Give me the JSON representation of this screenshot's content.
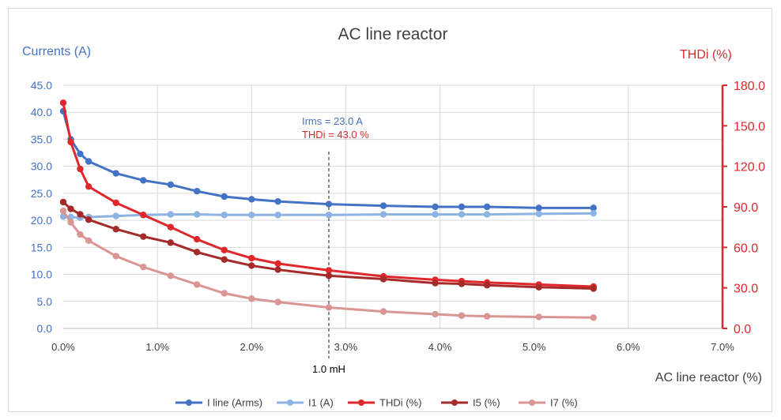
{
  "chart_data": {
    "type": "line",
    "title": "AC line reactor",
    "xlabel": "AC line reactor (%)",
    "ylabel_left": "Currents (A)",
    "ylabel_right": "THDi (%)",
    "xlim": [
      0,
      7
    ],
    "ylim_left": [
      0,
      45
    ],
    "ylim_right": [
      0,
      180
    ],
    "x_ticks": [
      "0.0%",
      "1.0%",
      "2.0%",
      "3.0%",
      "4.0%",
      "5.0%",
      "6.0%",
      "7.0%"
    ],
    "y_ticks_left": [
      "0.0",
      "5.0",
      "10.0",
      "15.0",
      "20.0",
      "25.0",
      "30.0",
      "35.0",
      "40.0",
      "45.0"
    ],
    "y_ticks_right": [
      "0.0",
      "30.0",
      "60.0",
      "90.0",
      "120.0",
      "150.0",
      "180.0"
    ],
    "grid": true,
    "legend_position": "bottom",
    "annotation": {
      "x": 2.82,
      "lines": [
        "Irms = 23.0 A",
        "THDi = 43.0 %"
      ],
      "marker_label": "1.0 mH"
    },
    "series": [
      {
        "name": "I line (Arms)",
        "axis": "left",
        "color": "#4472c4",
        "x": [
          0,
          0.08,
          0.18,
          0.27,
          0.56,
          0.85,
          1.14,
          1.42,
          1.71,
          2.0,
          2.28,
          2.82,
          3.4,
          3.95,
          4.23,
          4.5,
          5.05,
          5.63
        ],
        "y": [
          40.2,
          35.0,
          32.3,
          30.9,
          28.7,
          27.4,
          26.6,
          25.4,
          24.4,
          23.9,
          23.5,
          23.0,
          22.7,
          22.5,
          22.5,
          22.5,
          22.3,
          22.3
        ]
      },
      {
        "name": "I1 (A)",
        "axis": "left",
        "color": "#8db3e2",
        "x": [
          0,
          0.08,
          0.18,
          0.27,
          0.56,
          0.85,
          1.14,
          1.42,
          1.71,
          2.0,
          2.28,
          2.82,
          3.4,
          3.95,
          4.23,
          4.5,
          5.05,
          5.63
        ],
        "y": [
          20.7,
          20.6,
          20.5,
          20.6,
          20.8,
          21.0,
          21.1,
          21.1,
          21.0,
          21.0,
          21.0,
          21.0,
          21.1,
          21.1,
          21.1,
          21.1,
          21.2,
          21.3
        ]
      },
      {
        "name": "THDi (%)",
        "axis": "right",
        "color": "#e0282c",
        "x": [
          0,
          0.08,
          0.18,
          0.27,
          0.56,
          0.85,
          1.14,
          1.42,
          1.71,
          2.0,
          2.28,
          2.82,
          3.4,
          3.95,
          4.23,
          4.5,
          5.05,
          5.63
        ],
        "y": [
          167.0,
          138.0,
          118.0,
          105.0,
          93.0,
          84.0,
          75.0,
          66.0,
          58.0,
          52.0,
          48.0,
          43.0,
          38.5,
          36.0,
          35.0,
          34.0,
          32.5,
          31.0
        ]
      },
      {
        "name": "I5 (%)",
        "axis": "right",
        "color": "#a52a2a",
        "x": [
          0,
          0.08,
          0.18,
          0.27,
          0.56,
          0.85,
          1.14,
          1.42,
          1.71,
          2.0,
          2.28,
          2.82,
          3.4,
          3.95,
          4.23,
          4.5,
          5.05,
          5.63
        ],
        "y": [
          93.5,
          88.5,
          84.5,
          80.5,
          73.5,
          68.0,
          63.5,
          56.5,
          51.0,
          46.5,
          43.5,
          39.0,
          36.5,
          33.5,
          33.0,
          32.0,
          30.5,
          29.5
        ]
      },
      {
        "name": "I7 (%)",
        "axis": "right",
        "color": "#d99694",
        "x": [
          0,
          0.08,
          0.18,
          0.27,
          0.56,
          0.85,
          1.14,
          1.42,
          1.71,
          2.0,
          2.28,
          2.82,
          3.4,
          3.95,
          4.23,
          4.5,
          5.05,
          5.63
        ],
        "y": [
          87.0,
          78.5,
          69.5,
          65.0,
          53.5,
          45.5,
          39.0,
          32.5,
          26.0,
          22.0,
          19.5,
          15.5,
          12.5,
          10.5,
          9.5,
          9.0,
          8.5,
          8.0
        ]
      }
    ]
  }
}
